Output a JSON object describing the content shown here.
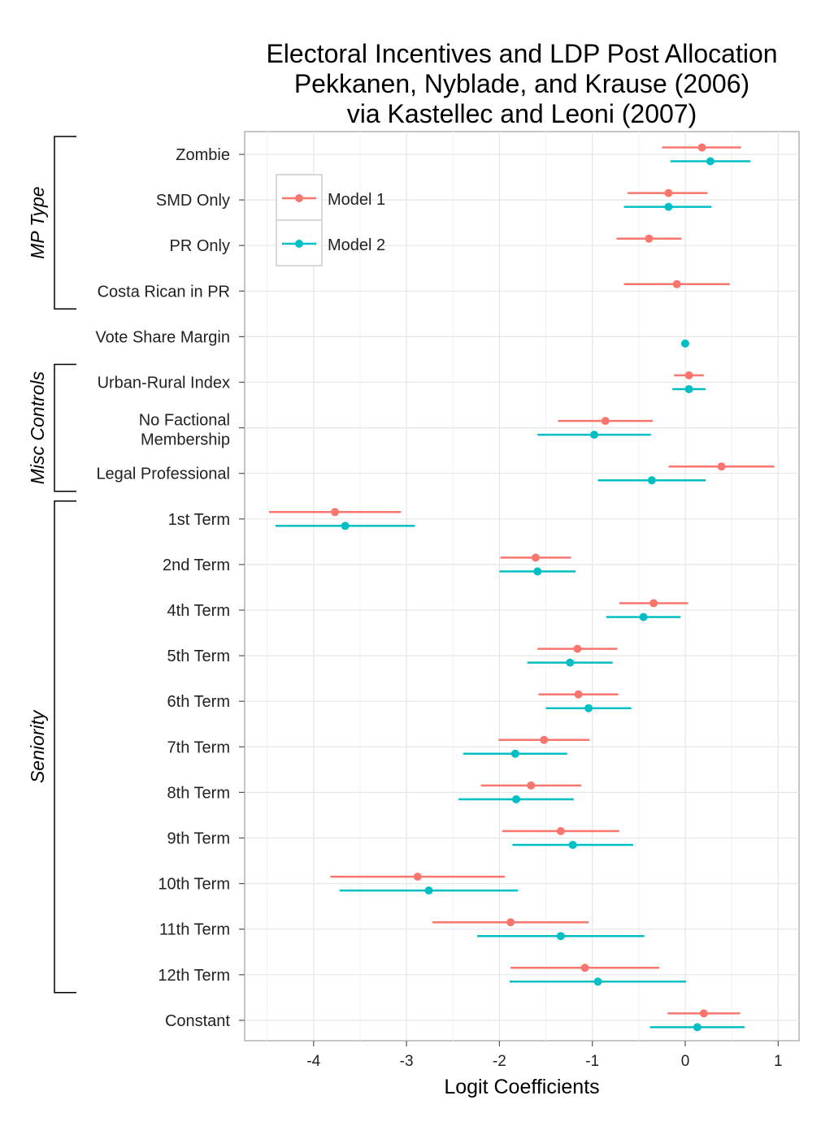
{
  "chart_data": {
    "type": "coefficient-plot",
    "title": [
      "Electoral Incentives and LDP Post Allocation",
      "Pekkanen, Nyblade, and Krause (2006)",
      "via Kastellec and Leoni (2007)"
    ],
    "xlabel": "Logit Coefficients",
    "xlim": [
      -4.75,
      1.25
    ],
    "xticks": [
      -4,
      -3,
      -2,
      -1,
      0,
      1
    ],
    "xtick_labels": [
      "-4",
      "-3",
      "-2",
      "-1",
      "0",
      "1"
    ],
    "grid": true,
    "legend_position": "top-left",
    "series": [
      {
        "name": "Model 1",
        "color": "#F8766D"
      },
      {
        "name": "Model 2",
        "color": "#00BFC4"
      }
    ],
    "rows": [
      {
        "label": [
          "Zombie"
        ],
        "m1": {
          "est": 0.18,
          "lo": -0.25,
          "hi": 0.6
        },
        "m2": {
          "est": 0.27,
          "lo": -0.16,
          "hi": 0.7
        }
      },
      {
        "label": [
          "SMD Only"
        ],
        "m1": {
          "est": -0.18,
          "lo": -0.62,
          "hi": 0.24
        },
        "m2": {
          "est": -0.18,
          "lo": -0.66,
          "hi": 0.28
        }
      },
      {
        "label": [
          "PR Only"
        ],
        "m1": {
          "est": -0.39,
          "lo": -0.74,
          "hi": -0.04
        },
        "m2": null
      },
      {
        "label": [
          "Costa Rican in PR"
        ],
        "m1": {
          "est": -0.09,
          "lo": -0.66,
          "hi": 0.48
        },
        "m2": null
      },
      {
        "label": [
          "Vote Share Margin"
        ],
        "m1": null,
        "m2": {
          "est": 0.0,
          "lo": -0.02,
          "hi": 0.02
        }
      },
      {
        "label": [
          "Urban-Rural Index"
        ],
        "m1": {
          "est": 0.04,
          "lo": -0.12,
          "hi": 0.2
        },
        "m2": {
          "est": 0.04,
          "lo": -0.14,
          "hi": 0.22
        }
      },
      {
        "label": [
          "No Factional",
          "Membership"
        ],
        "m1": {
          "est": -0.86,
          "lo": -1.37,
          "hi": -0.35
        },
        "m2": {
          "est": -0.98,
          "lo": -1.59,
          "hi": -0.37
        }
      },
      {
        "label": [
          "Legal Professional"
        ],
        "m1": {
          "est": 0.39,
          "lo": -0.18,
          "hi": 0.96
        },
        "m2": {
          "est": -0.36,
          "lo": -0.94,
          "hi": 0.22
        }
      },
      {
        "label": [
          "1st Term"
        ],
        "m1": {
          "est": -3.77,
          "lo": -4.48,
          "hi": -3.06
        },
        "m2": {
          "est": -3.66,
          "lo": -4.41,
          "hi": -2.91
        }
      },
      {
        "label": [
          "2nd Term"
        ],
        "m1": {
          "est": -1.61,
          "lo": -1.99,
          "hi": -1.23
        },
        "m2": {
          "est": -1.59,
          "lo": -2.0,
          "hi": -1.18
        }
      },
      {
        "label": [
          "4th Term"
        ],
        "m1": {
          "est": -0.34,
          "lo": -0.71,
          "hi": 0.03
        },
        "m2": {
          "est": -0.45,
          "lo": -0.85,
          "hi": -0.05
        }
      },
      {
        "label": [
          "5th Term"
        ],
        "m1": {
          "est": -1.16,
          "lo": -1.59,
          "hi": -0.73
        },
        "m2": {
          "est": -1.24,
          "lo": -1.7,
          "hi": -0.78
        }
      },
      {
        "label": [
          "6th Term"
        ],
        "m1": {
          "est": -1.15,
          "lo": -1.58,
          "hi": -0.72
        },
        "m2": {
          "est": -1.04,
          "lo": -1.5,
          "hi": -0.58
        }
      },
      {
        "label": [
          "7th Term"
        ],
        "m1": {
          "est": -1.52,
          "lo": -2.01,
          "hi": -1.03
        },
        "m2": {
          "est": -1.83,
          "lo": -2.39,
          "hi": -1.27
        }
      },
      {
        "label": [
          "8th Term"
        ],
        "m1": {
          "est": -1.66,
          "lo": -2.2,
          "hi": -1.12
        },
        "m2": {
          "est": -1.82,
          "lo": -2.44,
          "hi": -1.2
        }
      },
      {
        "label": [
          "9th Term"
        ],
        "m1": {
          "est": -1.34,
          "lo": -1.97,
          "hi": -0.71
        },
        "m2": {
          "est": -1.21,
          "lo": -1.86,
          "hi": -0.56
        }
      },
      {
        "label": [
          "10th Term"
        ],
        "m1": {
          "est": -2.88,
          "lo": -3.82,
          "hi": -1.94
        },
        "m2": {
          "est": -2.76,
          "lo": -3.72,
          "hi": -1.8
        }
      },
      {
        "label": [
          "11th Term"
        ],
        "m1": {
          "est": -1.88,
          "lo": -2.72,
          "hi": -1.04
        },
        "m2": {
          "est": -1.34,
          "lo": -2.24,
          "hi": -0.44
        }
      },
      {
        "label": [
          "12th Term"
        ],
        "m1": {
          "est": -1.08,
          "lo": -1.88,
          "hi": -0.28
        },
        "m2": {
          "est": -0.94,
          "lo": -1.89,
          "hi": 0.01
        }
      },
      {
        "label": [
          "Constant"
        ],
        "m1": {
          "est": 0.2,
          "lo": -0.19,
          "hi": 0.59
        },
        "m2": {
          "est": 0.13,
          "lo": -0.38,
          "hi": 0.64
        }
      }
    ],
    "groups": [
      {
        "name": "MP Type",
        "first": 0,
        "last": 3
      },
      {
        "name": "Misc Controls",
        "first": 5,
        "last": 7
      },
      {
        "name": "Seniority",
        "first": 8,
        "last": 18
      }
    ]
  }
}
